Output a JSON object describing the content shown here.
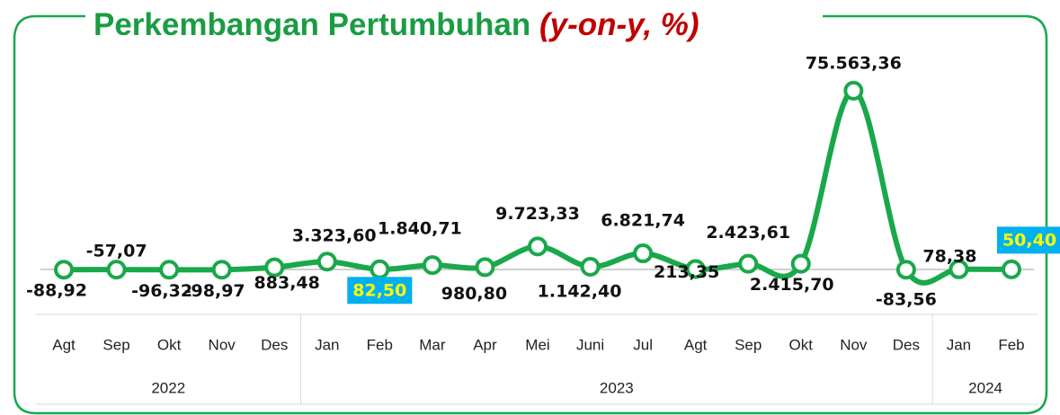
{
  "chart_data": {
    "type": "line",
    "title": "Perkembangan Pertumbuhan",
    "title_note": "(y-on-y, %)",
    "categories": [
      "Agt",
      "Sep",
      "Okt",
      "Nov",
      "Des",
      "Jan",
      "Feb",
      "Mar",
      "Apr",
      "Mei",
      "Juni",
      "Jul",
      "Agt",
      "Sep",
      "Okt",
      "Nov",
      "Des",
      "Jan",
      "Feb"
    ],
    "groups": [
      {
        "label": "2022",
        "count": 5
      },
      {
        "label": "2023",
        "count": 12
      },
      {
        "label": "2024",
        "count": 2
      }
    ],
    "series": [
      {
        "name": "y-on-y",
        "color": "#19a84a",
        "values": [
          -88.92,
          -57.07,
          -96.32,
          -98.97,
          883.48,
          3323.6,
          82.5,
          1840.71,
          980.8,
          9723.33,
          1142.4,
          6821.74,
          213.35,
          2423.61,
          2415.7,
          75563.36,
          -83.56,
          78.38,
          50.4
        ],
        "value_labels": [
          "-88,92",
          "-57,07",
          "-96,32",
          "-98,97",
          "883,48",
          "3.323,60",
          "82,50",
          "1.840,71",
          "980,80",
          "9.723,33",
          "1.142,40",
          "6.821,74",
          "213,35",
          "2.423,61",
          "2.415,70",
          "75.563,36",
          "-83,56",
          "78,38",
          "50,40"
        ],
        "highlighted_labels": [
          6,
          18
        ],
        "highlight_color": "#00b0f0"
      }
    ]
  }
}
